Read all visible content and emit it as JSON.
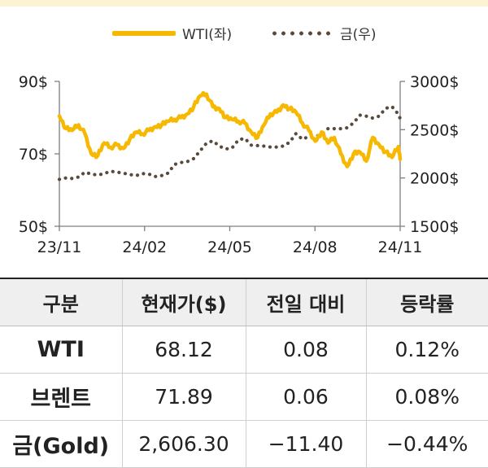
{
  "chart_data": {
    "type": "line",
    "legend": [
      {
        "name": "WTI(좌)",
        "style": "line",
        "color": "#f6b800"
      },
      {
        "name": "금(우)",
        "style": "dots",
        "color": "#5a4a3c"
      }
    ],
    "x_tick_labels": [
      "23/11",
      "24/02",
      "24/05",
      "24/08",
      "24/11"
    ],
    "x_range": [
      "2023-11-01",
      "2024-11-08"
    ],
    "y_left": {
      "ticks": [
        "90$",
        "70$",
        "50$"
      ],
      "range": [
        50,
        90
      ]
    },
    "y_right": {
      "ticks": [
        "3000$",
        "2500$",
        "2000$",
        "1500$"
      ],
      "range": [
        1500,
        3000
      ]
    },
    "grid": false,
    "series": [
      {
        "name": "WTI(좌)",
        "axis": "left",
        "x": [
          "2023-11-01",
          "2023-11-08",
          "2023-11-15",
          "2023-11-22",
          "2023-11-29",
          "2023-12-06",
          "2023-12-13",
          "2023-12-20",
          "2023-12-27",
          "2024-01-03",
          "2024-01-10",
          "2024-01-17",
          "2024-01-24",
          "2024-01-31",
          "2024-02-07",
          "2024-02-14",
          "2024-02-21",
          "2024-02-28",
          "2024-03-06",
          "2024-03-13",
          "2024-03-20",
          "2024-03-27",
          "2024-04-03",
          "2024-04-10",
          "2024-04-17",
          "2024-04-24",
          "2024-05-01",
          "2024-05-08",
          "2024-05-15",
          "2024-05-22",
          "2024-05-29",
          "2024-06-05",
          "2024-06-12",
          "2024-06-19",
          "2024-06-26",
          "2024-07-03",
          "2024-07-10",
          "2024-07-17",
          "2024-07-24",
          "2024-07-31",
          "2024-08-07",
          "2024-08-14",
          "2024-08-21",
          "2024-08-28",
          "2024-09-04",
          "2024-09-11",
          "2024-09-18",
          "2024-09-25",
          "2024-10-02",
          "2024-10-09",
          "2024-10-16",
          "2024-10-23",
          "2024-10-30",
          "2024-11-06",
          "2024-11-08"
        ],
        "values": [
          80.5,
          77.0,
          76.5,
          78.0,
          75.5,
          70.0,
          69.5,
          73.0,
          71.8,
          72.5,
          71.5,
          74.0,
          76.0,
          75.5,
          76.5,
          77.5,
          78.0,
          79.0,
          79.5,
          80.0,
          81.0,
          83.0,
          86.0,
          86.5,
          83.0,
          82.5,
          80.0,
          79.5,
          79.0,
          78.5,
          76.0,
          74.5,
          78.0,
          81.0,
          81.5,
          83.5,
          82.5,
          81.5,
          78.5,
          76.5,
          73.5,
          76.0,
          73.0,
          74.5,
          70.0,
          66.5,
          70.0,
          70.5,
          68.0,
          74.5,
          72.5,
          70.5,
          69.0,
          72.0,
          68.5
        ]
      },
      {
        "name": "금(우)",
        "axis": "right",
        "x": [
          "2023-11-01",
          "2023-11-08",
          "2023-11-15",
          "2023-11-22",
          "2023-11-29",
          "2023-12-06",
          "2023-12-13",
          "2023-12-20",
          "2023-12-27",
          "2024-01-03",
          "2024-01-10",
          "2024-01-17",
          "2024-01-24",
          "2024-01-31",
          "2024-02-07",
          "2024-02-14",
          "2024-02-21",
          "2024-02-28",
          "2024-03-06",
          "2024-03-13",
          "2024-03-20",
          "2024-03-27",
          "2024-04-03",
          "2024-04-10",
          "2024-04-17",
          "2024-04-24",
          "2024-05-01",
          "2024-05-08",
          "2024-05-15",
          "2024-05-22",
          "2024-05-29",
          "2024-06-05",
          "2024-06-12",
          "2024-06-19",
          "2024-06-26",
          "2024-07-03",
          "2024-07-10",
          "2024-07-17",
          "2024-07-24",
          "2024-07-31",
          "2024-08-07",
          "2024-08-14",
          "2024-08-21",
          "2024-08-28",
          "2024-09-04",
          "2024-09-11",
          "2024-09-18",
          "2024-09-25",
          "2024-10-02",
          "2024-10-09",
          "2024-10-16",
          "2024-10-23",
          "2024-10-30",
          "2024-11-06",
          "2024-11-08"
        ],
        "values": [
          1985,
          2000,
          1995,
          2010,
          2060,
          2040,
          2030,
          2045,
          2070,
          2060,
          2050,
          2035,
          2025,
          2045,
          2040,
          2015,
          2025,
          2050,
          2140,
          2160,
          2170,
          2200,
          2280,
          2360,
          2385,
          2330,
          2300,
          2310,
          2395,
          2410,
          2340,
          2335,
          2330,
          2320,
          2320,
          2330,
          2370,
          2460,
          2400,
          2430,
          2430,
          2450,
          2510,
          2510,
          2510,
          2520,
          2570,
          2650,
          2640,
          2620,
          2640,
          2720,
          2740,
          2660,
          2615
        ]
      }
    ]
  },
  "table": {
    "headers": [
      "구분",
      "현재가($)",
      "전일 대비",
      "등락률"
    ],
    "rows": [
      [
        "WTI",
        "68.12",
        "0.08",
        "0.12%"
      ],
      [
        "브렌트",
        "71.89",
        "0.06",
        "0.08%"
      ],
      [
        "금(Gold)",
        "2,606.30",
        "−11.40",
        "−0.44%"
      ]
    ]
  }
}
